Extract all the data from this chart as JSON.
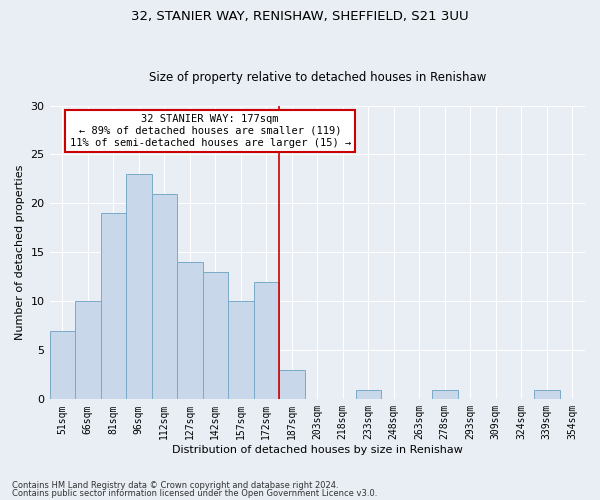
{
  "title": "32, STANIER WAY, RENISHAW, SHEFFIELD, S21 3UU",
  "subtitle": "Size of property relative to detached houses in Renishaw",
  "xlabel": "Distribution of detached houses by size in Renishaw",
  "ylabel": "Number of detached properties",
  "bar_labels": [
    "51sqm",
    "66sqm",
    "81sqm",
    "96sqm",
    "112sqm",
    "127sqm",
    "142sqm",
    "157sqm",
    "172sqm",
    "187sqm",
    "203sqm",
    "218sqm",
    "233sqm",
    "248sqm",
    "263sqm",
    "278sqm",
    "293sqm",
    "309sqm",
    "324sqm",
    "339sqm",
    "354sqm"
  ],
  "bar_values": [
    7,
    10,
    19,
    23,
    21,
    14,
    13,
    10,
    12,
    3,
    0,
    0,
    1,
    0,
    0,
    1,
    0,
    0,
    0,
    1,
    0
  ],
  "bar_color": "#c8d8ea",
  "bar_edge_color": "#7aaac8",
  "ylim": [
    0,
    30
  ],
  "yticks": [
    0,
    5,
    10,
    15,
    20,
    25,
    30
  ],
  "property_line_x": 8.5,
  "annotation_text": "32 STANIER WAY: 177sqm\n← 89% of detached houses are smaller (119)\n11% of semi-detached houses are larger (15) →",
  "annotation_box_color": "#ffffff",
  "annotation_box_edge_color": "#cc0000",
  "line_color": "#cc0000",
  "footnote1": "Contains HM Land Registry data © Crown copyright and database right 2024.",
  "footnote2": "Contains public sector information licensed under the Open Government Licence v3.0.",
  "background_color": "#e8eef4",
  "grid_color": "#ffffff",
  "title_fontsize": 9.5,
  "subtitle_fontsize": 8.5,
  "ylabel_fontsize": 8,
  "xlabel_fontsize": 8,
  "tick_fontsize": 7,
  "annot_fontsize": 7.5,
  "footnote_fontsize": 6
}
